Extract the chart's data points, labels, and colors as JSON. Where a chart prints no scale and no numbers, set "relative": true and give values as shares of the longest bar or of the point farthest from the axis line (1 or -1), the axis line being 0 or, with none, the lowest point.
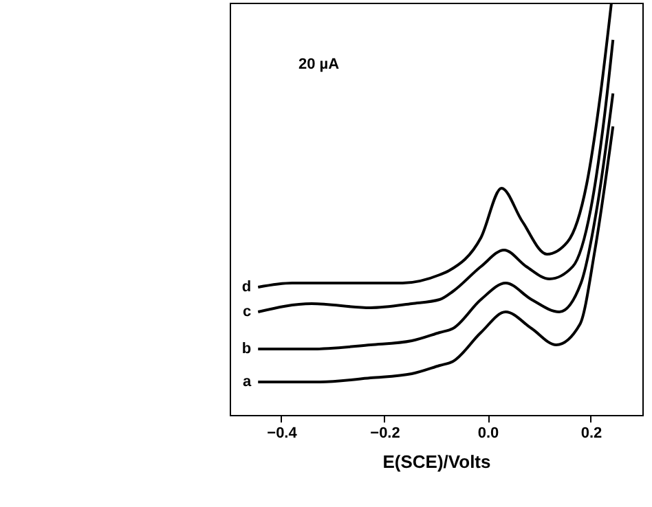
{
  "chart_data": {
    "type": "line",
    "xlabel": "E(SCE)/Volts",
    "relative": true,
    "xlim": [
      -0.5,
      0.3
    ],
    "xticks": [
      -0.4,
      -0.2,
      {
        "value": 0,
        "label": "0.0"
      },
      0.2
    ],
    "grid": false,
    "marker": "none",
    "line_style": "solid",
    "annotations": [
      "20 µA"
    ],
    "series": [
      {
        "name": "a",
        "color": "#000000",
        "x": [
          -0.445,
          -0.325,
          -0.227,
          -0.147,
          -0.093,
          -0.067,
          -0.013,
          0.035,
          0.085,
          0.133,
          0.179,
          0.208,
          0.243
        ],
        "values": [
          0.08,
          0.08,
          0.09,
          0.1,
          0.12,
          0.13,
          0.2,
          0.25,
          0.21,
          0.17,
          0.22,
          0.4,
          0.7
        ]
      },
      {
        "name": "b",
        "color": "#000000",
        "x": [
          -0.445,
          -0.341,
          -0.227,
          -0.147,
          -0.093,
          -0.067,
          -0.013,
          0.035,
          0.085,
          0.139,
          0.181,
          0.213,
          0.243
        ],
        "values": [
          0.16,
          0.16,
          0.17,
          0.18,
          0.2,
          0.21,
          0.28,
          0.32,
          0.28,
          0.25,
          0.32,
          0.51,
          0.78
        ]
      },
      {
        "name": "c",
        "color": "#000000",
        "x": [
          -0.445,
          -0.341,
          -0.227,
          -0.147,
          -0.093,
          -0.067,
          -0.013,
          0.032,
          0.075,
          0.12,
          0.165,
          0.2,
          0.227,
          0.243
        ],
        "values": [
          0.25,
          0.27,
          0.26,
          0.27,
          0.28,
          0.3,
          0.36,
          0.4,
          0.36,
          0.33,
          0.36,
          0.5,
          0.73,
          0.91
        ]
      },
      {
        "name": "d",
        "color": "#000000",
        "x": [
          -0.445,
          -0.379,
          -0.307,
          -0.235,
          -0.165,
          -0.093,
          -0.075,
          -0.013,
          0.027,
          0.067,
          0.115,
          0.155,
          0.192,
          0.219,
          0.24
        ],
        "values": [
          0.31,
          0.32,
          0.32,
          0.32,
          0.32,
          0.34,
          0.35,
          0.43,
          0.55,
          0.47,
          0.39,
          0.42,
          0.56,
          0.78,
          1.0
        ]
      }
    ]
  }
}
